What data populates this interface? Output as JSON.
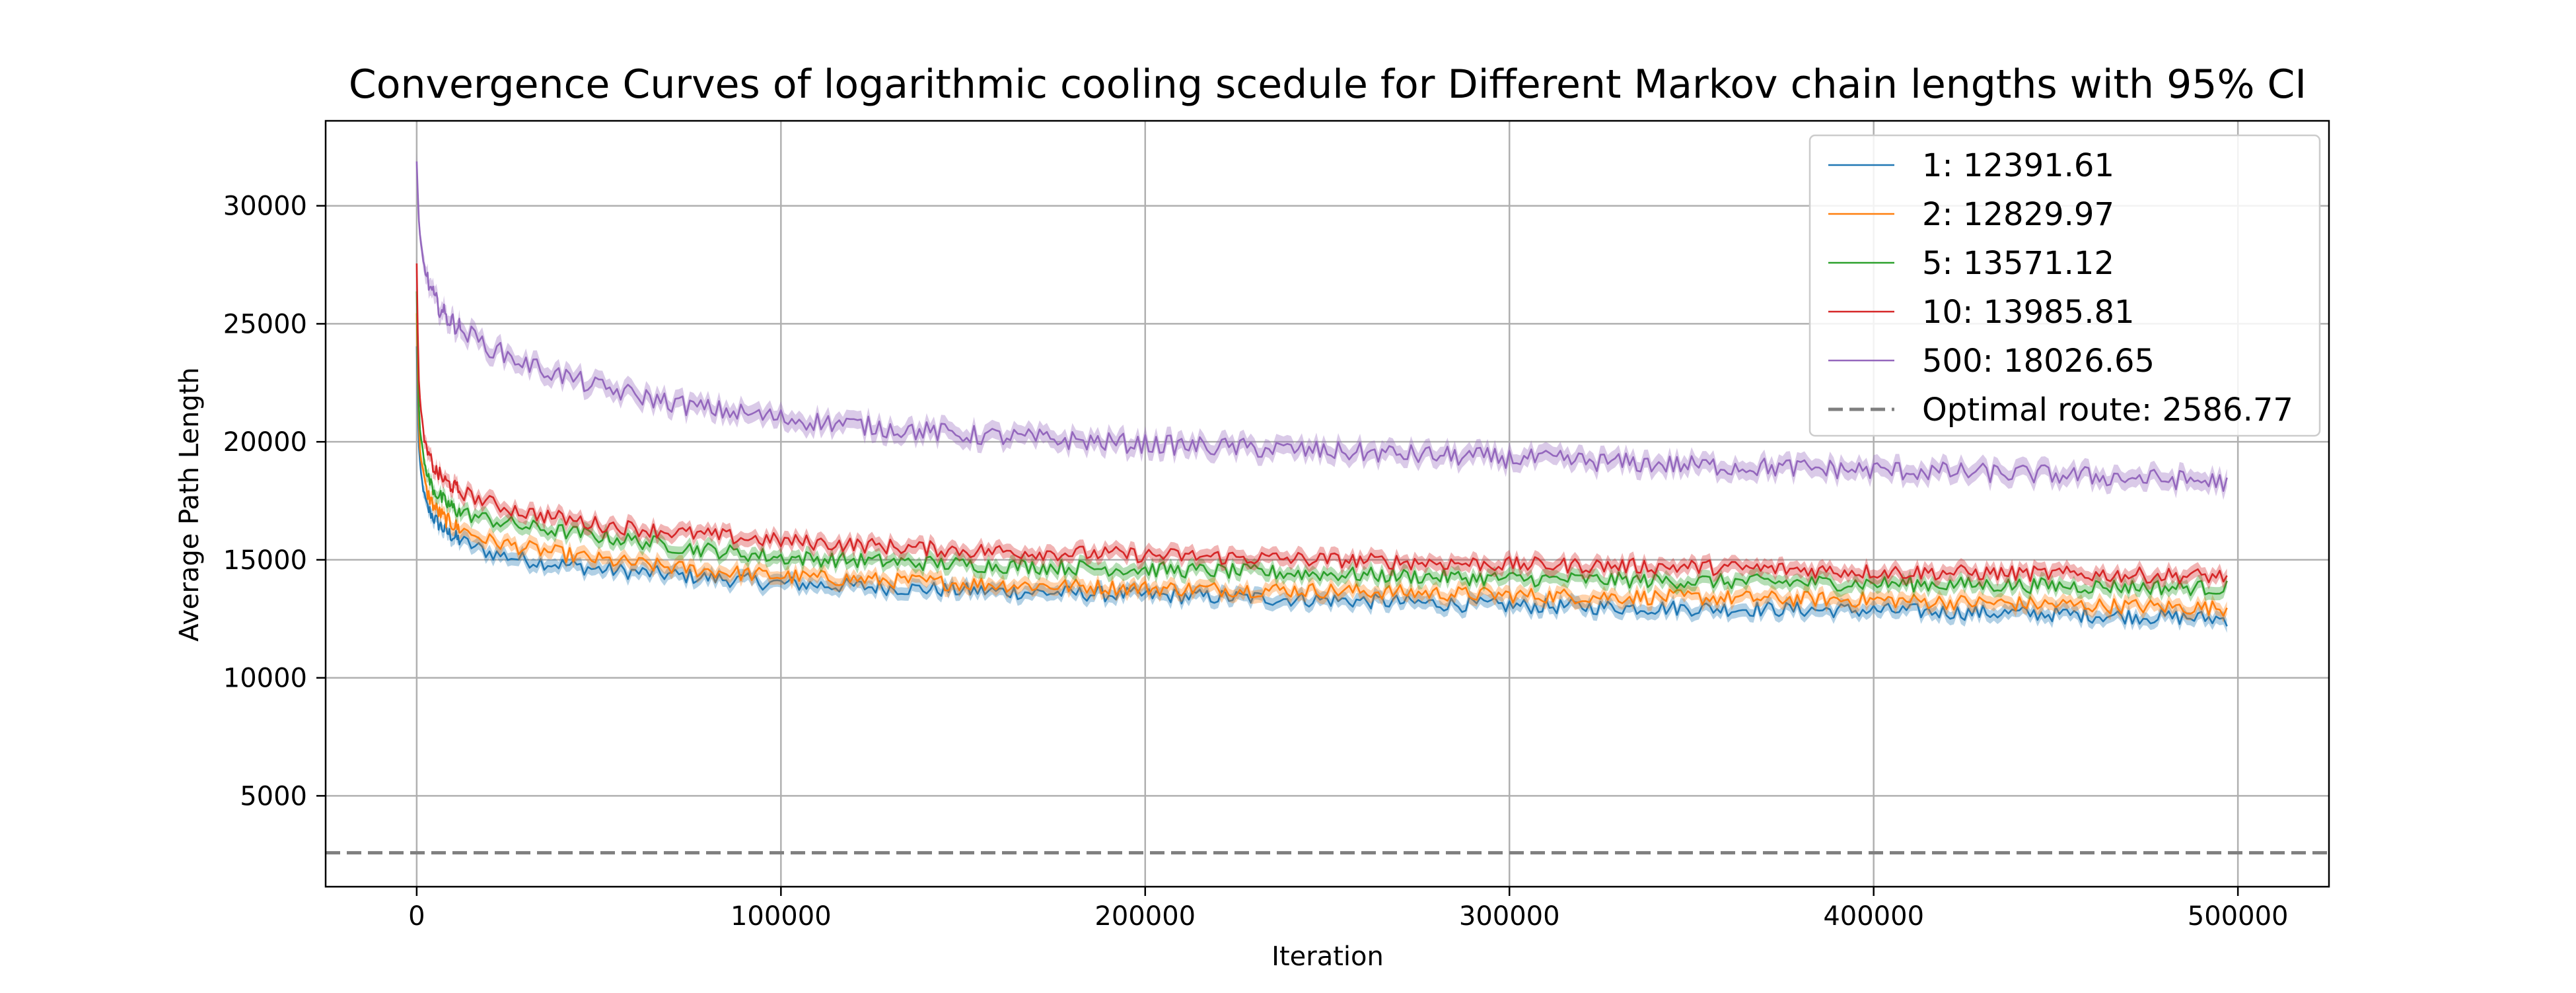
{
  "chart_data": {
    "type": "line",
    "title": "Convergence Curves of logarithmic cooling scedule for Different Markov chain lengths with 95% CI",
    "xlabel": "Iteration",
    "ylabel": "Average Path Length",
    "xlim": [
      -25000,
      525000
    ],
    "ylim": [
      1150,
      33600
    ],
    "xticks": [
      0,
      100000,
      200000,
      300000,
      400000,
      500000
    ],
    "xtick_labels": [
      "0",
      "100000",
      "200000",
      "300000",
      "400000",
      "500000"
    ],
    "yticks": [
      5000,
      10000,
      15000,
      20000,
      25000,
      30000
    ],
    "ytick_labels": [
      "5000",
      "10000",
      "15000",
      "20000",
      "25000",
      "30000"
    ],
    "grid": true,
    "legend_position": "top-right",
    "confidence_interval": "95%",
    "series": [
      {
        "name": "1: 12391.61",
        "color": "#1f77b4",
        "ci": 280,
        "x": [
          0,
          500,
          1000,
          2000,
          3000,
          5000,
          8000,
          12000,
          20000,
          30000,
          50000,
          75000,
          100000,
          150000,
          200000,
          250000,
          300000,
          350000,
          400000,
          450000,
          497000
        ],
        "y": [
          24000,
          20000,
          18800,
          17800,
          17200,
          16700,
          16200,
          15800,
          15300,
          15000,
          14600,
          14300,
          14000,
          13700,
          13500,
          13300,
          13050,
          12950,
          12850,
          12700,
          12500
        ]
      },
      {
        "name": "2: 12829.97",
        "color": "#ff7f0e",
        "ci": 280,
        "x": [
          0,
          500,
          1000,
          2000,
          3000,
          5000,
          8000,
          12000,
          20000,
          30000,
          50000,
          75000,
          100000,
          150000,
          200000,
          250000,
          300000,
          350000,
          400000,
          450000,
          497000
        ],
        "y": [
          25500,
          21000,
          19500,
          18500,
          17800,
          17200,
          16700,
          16300,
          15800,
          15500,
          15000,
          14600,
          14300,
          14000,
          13800,
          13700,
          13500,
          13400,
          13300,
          13100,
          12950
        ]
      },
      {
        "name": "5: 13571.12",
        "color": "#2ca02c",
        "ci": 280,
        "x": [
          0,
          500,
          1000,
          2000,
          3000,
          5000,
          8000,
          12000,
          20000,
          30000,
          50000,
          75000,
          100000,
          150000,
          200000,
          250000,
          300000,
          350000,
          400000,
          450000,
          497000
        ],
        "y": [
          26500,
          22000,
          20300,
          19200,
          18500,
          17900,
          17400,
          17000,
          16700,
          16400,
          16000,
          15500,
          15100,
          14800,
          14600,
          14400,
          14200,
          14100,
          14000,
          13900,
          13800
        ]
      },
      {
        "name": "10: 13985.81",
        "color": "#d62728",
        "ci": 300,
        "x": [
          0,
          500,
          1000,
          2000,
          3000,
          5000,
          8000,
          12000,
          20000,
          30000,
          50000,
          75000,
          100000,
          150000,
          200000,
          250000,
          300000,
          350000,
          400000,
          450000,
          497000
        ],
        "y": [
          27500,
          23000,
          21500,
          20200,
          19500,
          18800,
          18300,
          17900,
          17400,
          17000,
          16500,
          16100,
          15800,
          15400,
          15200,
          15000,
          14800,
          14700,
          14500,
          14400,
          14300
        ]
      },
      {
        "name": "500: 18026.65",
        "color": "#9467bd",
        "ci": 380,
        "x": [
          0,
          500,
          1000,
          2000,
          3000,
          5000,
          8000,
          12000,
          20000,
          30000,
          50000,
          75000,
          100000,
          150000,
          200000,
          250000,
          300000,
          350000,
          400000,
          450000,
          497000
        ],
        "y": [
          31800,
          29500,
          28500,
          27500,
          26800,
          26000,
          25300,
          24800,
          24000,
          23300,
          22300,
          21500,
          21000,
          20300,
          19900,
          19600,
          19300,
          19000,
          18800,
          18600,
          18300
        ]
      }
    ],
    "reference_line": {
      "name": "Optimal route: 2586.77",
      "y": 2586.77,
      "color": "#7f7f7f",
      "style": "dashed"
    }
  }
}
